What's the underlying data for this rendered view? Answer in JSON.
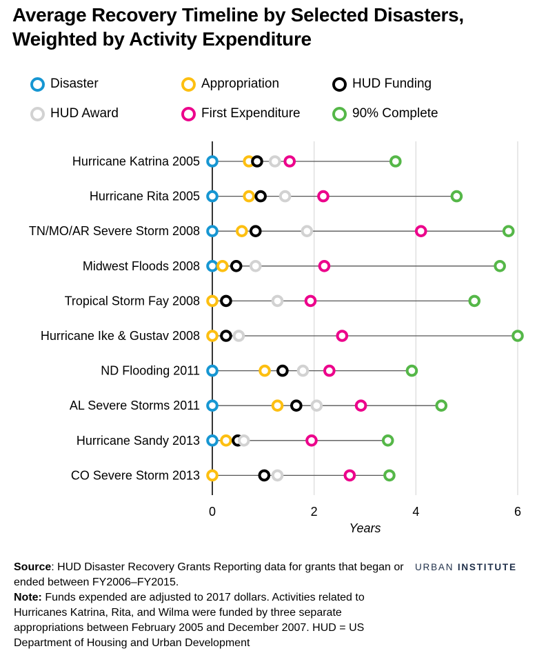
{
  "title_line1": "Average Recovery Timeline by Selected Disasters,",
  "title_line2": "Weighted by Activity Expenditure",
  "legend": [
    {
      "key": "disaster",
      "label": "Disaster",
      "color": "#1696d2"
    },
    {
      "key": "appropriation",
      "label": "Appropriation",
      "color": "#fdbf11"
    },
    {
      "key": "hud_funding",
      "label": "HUD Funding",
      "color": "#000000"
    },
    {
      "key": "hud_award",
      "label": "HUD Award",
      "color": "#d2d2d2"
    },
    {
      "key": "first_expenditure",
      "label": "First Expenditure",
      "color": "#ec008b"
    },
    {
      "key": "complete_90",
      "label": "90% Complete",
      "color": "#55b748"
    }
  ],
  "chart_data": {
    "type": "scatter",
    "subtype": "dot-timeline",
    "xlabel": "Years",
    "xlim": [
      0,
      6
    ],
    "xticks": [
      0,
      2,
      4,
      6
    ],
    "grid": true,
    "series_order": [
      "disaster",
      "appropriation",
      "hud_funding",
      "hud_award",
      "first_expenditure",
      "complete_90"
    ],
    "categories": [
      "Hurricane Katrina 2005",
      "Hurricane Rita 2005",
      "TN/MO/AR Severe Storm 2008",
      "Midwest Floods 2008",
      "Tropical Storm Fay 2008",
      "Hurricane Ike & Gustav 2008",
      "ND Flooding 2011",
      "AL Severe Storms 2011",
      "Hurricane Sandy 2013",
      "CO Severe Storm 2013"
    ],
    "rows": [
      {
        "disaster": 0,
        "appropriation": 0.72,
        "hud_funding": 0.88,
        "hud_award": 1.23,
        "first_expenditure": 1.52,
        "complete_90": 3.6
      },
      {
        "disaster": 0,
        "appropriation": 0.72,
        "hud_funding": 0.95,
        "hud_award": 1.43,
        "first_expenditure": 2.18,
        "complete_90": 4.8
      },
      {
        "disaster": 0,
        "appropriation": 0.58,
        "hud_funding": 0.85,
        "hud_award": 1.86,
        "first_expenditure": 4.1,
        "complete_90": 5.82
      },
      {
        "disaster": 0,
        "appropriation": 0.2,
        "hud_funding": 0.47,
        "hud_award": 0.85,
        "first_expenditure": 2.2,
        "complete_90": 5.65
      },
      {
        "disaster": null,
        "appropriation": 0,
        "hud_funding": 0.27,
        "hud_award": 1.28,
        "first_expenditure": 1.93,
        "complete_90": 5.15
      },
      {
        "disaster": null,
        "appropriation": 0,
        "hud_funding": 0.27,
        "hud_award": 0.52,
        "first_expenditure": 2.55,
        "complete_90": 6.0
      },
      {
        "disaster": 0,
        "appropriation": 1.03,
        "hud_funding": 1.38,
        "hud_award": 1.78,
        "first_expenditure": 2.3,
        "complete_90": 3.92
      },
      {
        "disaster": 0,
        "appropriation": 1.28,
        "hud_funding": 1.65,
        "hud_award": 2.05,
        "first_expenditure": 2.92,
        "complete_90": 4.5
      },
      {
        "disaster": 0,
        "appropriation": 0.27,
        "hud_funding": 0.5,
        "hud_award": 0.62,
        "first_expenditure": 1.95,
        "complete_90": 3.45
      },
      {
        "disaster": null,
        "appropriation": 0,
        "hud_funding": 1.02,
        "hud_award": 1.28,
        "first_expenditure": 2.7,
        "complete_90": 3.48
      }
    ]
  },
  "notes": {
    "source_label": "Source",
    "source_text": ": HUD Disaster Recovery Grants Reporting data for grants that began or ended between FY2006–FY2015.",
    "note_label": "Note:",
    "note_text": " Funds expended are adjusted to 2017 dollars. Activities related to Hurricanes Katrina, Rita, and Wilma were funded by three separate appropriations between February 2005 and December 2007. HUD = US Department of Housing and Urban Development"
  },
  "logo": {
    "part1": "URBAN",
    "part2": "INSTITUTE"
  }
}
